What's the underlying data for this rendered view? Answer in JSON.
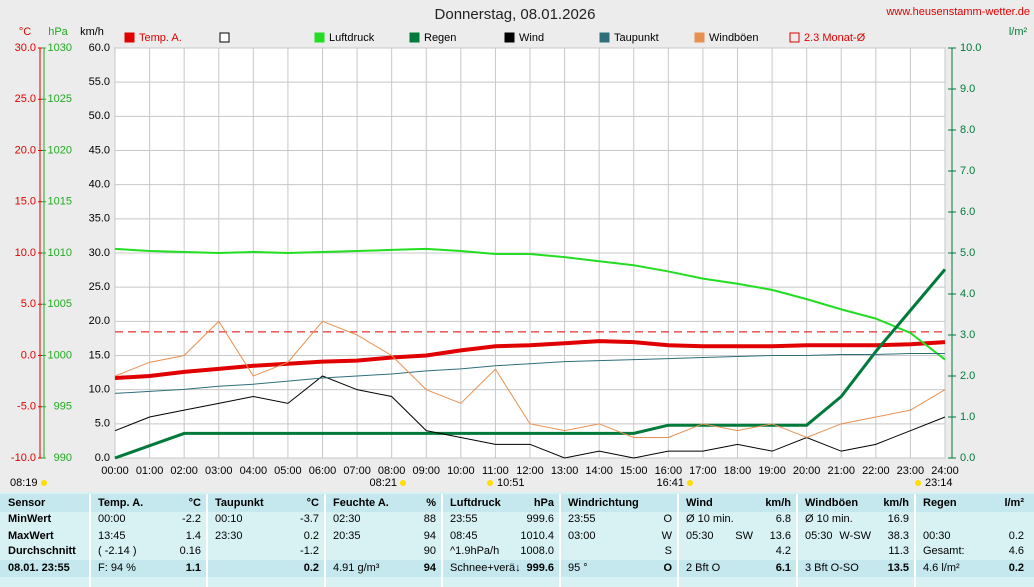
{
  "chart_data": {
    "type": "line",
    "title": "Donnerstag, 08.01.2026",
    "source": "www.heusenstamm-wetter.de",
    "categories": [
      "00:00",
      "01:00",
      "02:00",
      "03:00",
      "04:00",
      "05:00",
      "06:00",
      "07:00",
      "08:00",
      "09:00",
      "10:00",
      "11:00",
      "12:00",
      "13:00",
      "14:00",
      "15:00",
      "16:00",
      "17:00",
      "18:00",
      "19:00",
      "20:00",
      "21:00",
      "22:00",
      "23:00",
      "24:00"
    ],
    "y_label": "km/h",
    "ylim": [
      0,
      60
    ],
    "yticks": [
      {
        "value": 0,
        "label": "0.0"
      },
      {
        "value": 5,
        "label": "5.0"
      },
      {
        "value": 10,
        "label": "10.0"
      },
      {
        "value": 15,
        "label": "15.0"
      },
      {
        "value": 20,
        "label": "20.0"
      },
      {
        "value": 25,
        "label": "25.0"
      },
      {
        "value": 30,
        "label": "30.0"
      },
      {
        "value": 35,
        "label": "35.0"
      },
      {
        "value": 40,
        "label": "40.0"
      },
      {
        "value": 45,
        "label": "45.0"
      },
      {
        "value": 50,
        "label": "50.0"
      },
      {
        "value": 55,
        "label": "55.0"
      },
      {
        "value": 60,
        "label": "60.0"
      }
    ],
    "y2_label": "l/m²",
    "y2lim": [
      0,
      10
    ],
    "y2ticks": [
      {
        "value": 0,
        "label": "0.0"
      },
      {
        "value": 1,
        "label": "1.0"
      },
      {
        "value": 2,
        "label": "2.0"
      },
      {
        "value": 3,
        "label": "3.0"
      },
      {
        "value": 4,
        "label": "4.0"
      },
      {
        "value": 5,
        "label": "5.0"
      },
      {
        "value": 6,
        "label": "6.0"
      },
      {
        "value": 7,
        "label": "7.0"
      },
      {
        "value": 8,
        "label": "8.0"
      },
      {
        "value": 9,
        "label": "9.0"
      },
      {
        "value": 10,
        "label": "10.0"
      }
    ],
    "y3_label": "°C",
    "y3lim": [
      -10,
      30
    ],
    "y3ticks": [
      {
        "value": -10,
        "label": "-10.0"
      },
      {
        "value": -5,
        "label": "-5.0"
      },
      {
        "value": 0,
        "label": "0.0"
      },
      {
        "value": 5,
        "label": "5.0"
      },
      {
        "value": 10,
        "label": "10.0"
      },
      {
        "value": 15,
        "label": "15.0"
      },
      {
        "value": 20,
        "label": "20.0"
      },
      {
        "value": 25,
        "label": "25.0"
      },
      {
        "value": 30,
        "label": "30.0"
      }
    ],
    "y4_label": "hPa",
    "y4lim": [
      990,
      1030
    ],
    "y4ticks": [
      990,
      995,
      1000,
      1005,
      1010,
      1015,
      1020,
      1025,
      1030
    ],
    "grid": true,
    "series": [
      {
        "name": "Temp. A.",
        "color": "#e00000",
        "axis": "y3",
        "values": [
          -2.2,
          -2.0,
          -1.6,
          -1.3,
          -1.0,
          -0.8,
          -0.6,
          -0.5,
          -0.2,
          0.0,
          0.5,
          0.9,
          1.0,
          1.2,
          1.4,
          1.3,
          1.0,
          0.9,
          0.9,
          0.9,
          1.0,
          1.0,
          1.0,
          1.1,
          1.3
        ]
      },
      {
        "name": "Luftdruck",
        "color": "#22dd22",
        "axis": "y4",
        "values": [
          1010.4,
          1010.2,
          1010.1,
          1010.0,
          1010.1,
          1010.0,
          1010.1,
          1010.2,
          1010.3,
          1010.4,
          1010.2,
          1009.9,
          1009.9,
          1009.6,
          1009.2,
          1008.8,
          1008.2,
          1007.5,
          1007.0,
          1006.4,
          1005.5,
          1004.5,
          1003.6,
          1002.2,
          999.6
        ]
      },
      {
        "name": "Regen",
        "color": "#007a3a",
        "axis": "y2",
        "values": [
          0,
          0.3,
          0.6,
          0.6,
          0.6,
          0.6,
          0.6,
          0.6,
          0.6,
          0.6,
          0.6,
          0.6,
          0.6,
          0.6,
          0.6,
          0.6,
          0.8,
          0.8,
          0.8,
          0.8,
          0.8,
          1.5,
          2.6,
          3.6,
          4.6
        ]
      },
      {
        "name": "Wind",
        "color": "#000000",
        "axis": "y",
        "values": [
          4,
          6,
          7,
          8,
          9,
          8,
          12,
          10,
          9,
          4,
          3,
          2,
          2,
          0,
          1,
          0,
          1,
          1,
          2,
          1,
          3,
          1,
          2,
          4,
          6
        ]
      },
      {
        "name": "Taupunkt",
        "color": "#2f6f7a",
        "axis": "y3",
        "values": [
          -3.7,
          -3.5,
          -3.3,
          -3.0,
          -2.8,
          -2.5,
          -2.2,
          -2.0,
          -1.8,
          -1.5,
          -1.3,
          -1.0,
          -0.8,
          -0.6,
          -0.5,
          -0.4,
          -0.3,
          -0.2,
          -0.1,
          0.0,
          0.0,
          0.1,
          0.1,
          0.2,
          0.2
        ]
      },
      {
        "name": "Windböen",
        "color": "#e89050",
        "axis": "y",
        "values": [
          12,
          14,
          15,
          20,
          12,
          14,
          20,
          18,
          15,
          10,
          8,
          13,
          5,
          4,
          5,
          3,
          3,
          5,
          4,
          5,
          3,
          5,
          6,
          7,
          10
        ]
      }
    ],
    "reference_lines": [
      {
        "name": "2.3 Monat-Ø",
        "value": 2.3,
        "axis": "y3",
        "color": "#e00000"
      }
    ],
    "annotations": [
      "08:19",
      "08:21",
      "10:51",
      "16:41",
      "23:14"
    ]
  },
  "table": {
    "header": [
      [
        "Sensor"
      ],
      [
        "Temp. A.",
        "°C"
      ],
      [
        "Taupunkt",
        "°C"
      ],
      [
        "Feuchte A.",
        "%"
      ],
      [
        "Luftdruck",
        "hPa"
      ],
      [
        "Windrichtung"
      ],
      [
        "Wind",
        "km/h"
      ],
      [
        "Windböen",
        "km/h"
      ],
      [
        "Regen",
        "l/m²"
      ]
    ],
    "rows": [
      [
        [
          "MinWert"
        ],
        [
          "00:00",
          "-2.2"
        ],
        [
          "00:10",
          "-3.7"
        ],
        [
          "02:30",
          "88"
        ],
        [
          "23:55",
          "999.6"
        ],
        [
          "23:55",
          "O"
        ],
        [
          "Ø 10 min.",
          "6.8"
        ],
        [
          "Ø 10 min.",
          "16.9"
        ],
        []
      ],
      [
        [
          "MaxWert"
        ],
        [
          "13:45",
          "1.4"
        ],
        [
          "23:30",
          "0.2"
        ],
        [
          "20:35",
          "94"
        ],
        [
          "08:45",
          "1010.4"
        ],
        [
          "03:00",
          "W"
        ],
        [
          "05:30",
          "SW",
          "13.6"
        ],
        [
          "05:30",
          "W-SW",
          "38.3"
        ],
        [
          "00:30",
          "0.2"
        ]
      ],
      [
        [
          "Durchschnitt"
        ],
        [
          "( -2.14 )",
          "0.16"
        ],
        [
          "-1.2"
        ],
        [
          "90"
        ],
        [
          "^1.9hPa/h",
          "1008.0"
        ],
        [
          "S"
        ],
        [
          "4.2"
        ],
        [
          "11.3"
        ],
        [
          "Gesamt:",
          "4.6"
        ]
      ],
      [
        [
          "08.01. 23:55"
        ],
        [
          "F: 94 %",
          "1.1"
        ],
        [
          "0.2"
        ],
        [
          "4.91 g/m³",
          "94"
        ],
        [
          "Schnee+verä↓",
          "999.6"
        ],
        [
          "95 °",
          "O"
        ],
        [
          "2 Bft O",
          "6.1"
        ],
        [
          "3 Bft O-SO",
          "13.5"
        ],
        [
          "4.6 l/m²",
          "0.2"
        ]
      ]
    ]
  }
}
